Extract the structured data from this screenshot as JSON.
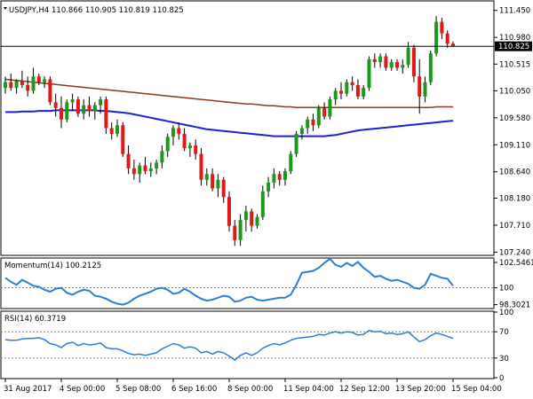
{
  "chart_data": [
    {
      "type": "candlestick",
      "header": "USDJPY,H4  110.866 110.905 110.819 110.825",
      "current_price": 110.825,
      "current_price_label": "110.825",
      "ylim": [
        107.2,
        111.6
      ],
      "yticks": [
        "111.450",
        "110.980",
        "110.515",
        "110.050",
        "109.580",
        "109.110",
        "108.640",
        "108.180",
        "107.710",
        "107.240"
      ],
      "ytick_values": [
        111.45,
        110.98,
        110.515,
        110.05,
        109.58,
        109.11,
        108.64,
        108.18,
        107.71,
        107.24
      ],
      "xticks": [
        "31 Aug 2017",
        "4 Sep 00:00",
        "5 Sep 08:00",
        "6 Sep 16:00",
        "8 Sep 00:00",
        "11 Sep 04:00",
        "12 Sep 12:00",
        "13 Sep 20:00",
        "15 Sep 04:00"
      ],
      "xtick_index": [
        0,
        10,
        20,
        30,
        40,
        50,
        60,
        70,
        80
      ],
      "candles": [
        {
          "o": 110.1,
          "h": 110.3,
          "l": 110.0,
          "c": 110.2
        },
        {
          "o": 110.2,
          "h": 110.35,
          "l": 110.05,
          "c": 110.1
        },
        {
          "o": 110.1,
          "h": 110.25,
          "l": 110.0,
          "c": 110.22
        },
        {
          "o": 110.22,
          "h": 110.4,
          "l": 110.1,
          "c": 110.15
        },
        {
          "o": 110.15,
          "h": 110.3,
          "l": 109.95,
          "c": 110.05
        },
        {
          "o": 110.05,
          "h": 110.45,
          "l": 110.0,
          "c": 110.3
        },
        {
          "o": 110.3,
          "h": 110.35,
          "l": 110.15,
          "c": 110.2
        },
        {
          "o": 110.2,
          "h": 110.3,
          "l": 110.1,
          "c": 110.25
        },
        {
          "o": 110.25,
          "h": 110.3,
          "l": 109.8,
          "c": 109.85
        },
        {
          "o": 109.85,
          "h": 110.0,
          "l": 109.6,
          "c": 109.75
        },
        {
          "o": 109.75,
          "h": 109.95,
          "l": 109.4,
          "c": 109.55
        },
        {
          "o": 109.55,
          "h": 109.9,
          "l": 109.5,
          "c": 109.85
        },
        {
          "o": 109.85,
          "h": 110.0,
          "l": 109.7,
          "c": 109.9
        },
        {
          "o": 109.9,
          "h": 109.95,
          "l": 109.6,
          "c": 109.65
        },
        {
          "o": 109.65,
          "h": 109.9,
          "l": 109.55,
          "c": 109.8
        },
        {
          "o": 109.8,
          "h": 109.95,
          "l": 109.6,
          "c": 109.7
        },
        {
          "o": 109.7,
          "h": 109.85,
          "l": 109.55,
          "c": 109.8
        },
        {
          "o": 109.8,
          "h": 109.95,
          "l": 109.65,
          "c": 109.9
        },
        {
          "o": 109.9,
          "h": 109.95,
          "l": 109.3,
          "c": 109.4
        },
        {
          "o": 109.4,
          "h": 109.5,
          "l": 109.2,
          "c": 109.3
        },
        {
          "o": 109.3,
          "h": 109.55,
          "l": 109.25,
          "c": 109.45
        },
        {
          "o": 109.45,
          "h": 109.5,
          "l": 108.9,
          "c": 108.95
        },
        {
          "o": 108.95,
          "h": 109.1,
          "l": 108.6,
          "c": 108.7
        },
        {
          "o": 108.7,
          "h": 108.85,
          "l": 108.5,
          "c": 108.6
        },
        {
          "o": 108.6,
          "h": 108.8,
          "l": 108.45,
          "c": 108.75
        },
        {
          "o": 108.75,
          "h": 108.9,
          "l": 108.6,
          "c": 108.65
        },
        {
          "o": 108.65,
          "h": 108.8,
          "l": 108.55,
          "c": 108.7
        },
        {
          "o": 108.7,
          "h": 108.85,
          "l": 108.6,
          "c": 108.8
        },
        {
          "o": 108.8,
          "h": 109.1,
          "l": 108.7,
          "c": 109.0
        },
        {
          "o": 109.0,
          "h": 109.3,
          "l": 108.9,
          "c": 109.25
        },
        {
          "o": 109.25,
          "h": 109.45,
          "l": 109.1,
          "c": 109.4
        },
        {
          "o": 109.4,
          "h": 109.5,
          "l": 109.2,
          "c": 109.3
        },
        {
          "o": 109.3,
          "h": 109.4,
          "l": 109.0,
          "c": 109.05
        },
        {
          "o": 109.05,
          "h": 109.15,
          "l": 108.9,
          "c": 109.1
        },
        {
          "o": 109.1,
          "h": 109.2,
          "l": 108.85,
          "c": 108.95
        },
        {
          "o": 108.95,
          "h": 109.05,
          "l": 108.4,
          "c": 108.5
        },
        {
          "o": 108.5,
          "h": 108.7,
          "l": 108.4,
          "c": 108.6
        },
        {
          "o": 108.6,
          "h": 108.7,
          "l": 108.3,
          "c": 108.35
        },
        {
          "o": 108.35,
          "h": 108.6,
          "l": 108.2,
          "c": 108.5
        },
        {
          "o": 108.5,
          "h": 108.55,
          "l": 108.1,
          "c": 108.2
        },
        {
          "o": 108.2,
          "h": 108.3,
          "l": 107.6,
          "c": 107.7
        },
        {
          "o": 107.7,
          "h": 107.8,
          "l": 107.35,
          "c": 107.45
        },
        {
          "o": 107.45,
          "h": 107.9,
          "l": 107.35,
          "c": 107.8
        },
        {
          "o": 107.8,
          "h": 108.05,
          "l": 107.6,
          "c": 107.95
        },
        {
          "o": 107.95,
          "h": 108.0,
          "l": 107.6,
          "c": 107.7
        },
        {
          "o": 107.7,
          "h": 107.9,
          "l": 107.65,
          "c": 107.85
        },
        {
          "o": 107.85,
          "h": 108.4,
          "l": 107.8,
          "c": 108.3
        },
        {
          "o": 108.3,
          "h": 108.55,
          "l": 108.2,
          "c": 108.45
        },
        {
          "o": 108.45,
          "h": 108.7,
          "l": 108.35,
          "c": 108.6
        },
        {
          "o": 108.6,
          "h": 108.65,
          "l": 108.4,
          "c": 108.5
        },
        {
          "o": 108.5,
          "h": 108.7,
          "l": 108.4,
          "c": 108.65
        },
        {
          "o": 108.65,
          "h": 109.0,
          "l": 108.6,
          "c": 108.95
        },
        {
          "o": 108.95,
          "h": 109.35,
          "l": 108.9,
          "c": 109.3
        },
        {
          "o": 109.3,
          "h": 109.45,
          "l": 109.2,
          "c": 109.4
        },
        {
          "o": 109.4,
          "h": 109.6,
          "l": 109.3,
          "c": 109.55
        },
        {
          "o": 109.55,
          "h": 109.65,
          "l": 109.35,
          "c": 109.45
        },
        {
          "o": 109.45,
          "h": 109.8,
          "l": 109.4,
          "c": 109.75
        },
        {
          "o": 109.75,
          "h": 109.85,
          "l": 109.55,
          "c": 109.6
        },
        {
          "o": 109.6,
          "h": 109.95,
          "l": 109.55,
          "c": 109.9
        },
        {
          "o": 109.9,
          "h": 110.1,
          "l": 109.8,
          "c": 110.05
        },
        {
          "o": 110.05,
          "h": 110.2,
          "l": 109.9,
          "c": 110.0
        },
        {
          "o": 110.0,
          "h": 110.25,
          "l": 109.95,
          "c": 110.2
        },
        {
          "o": 110.2,
          "h": 110.3,
          "l": 110.05,
          "c": 110.15
        },
        {
          "o": 110.15,
          "h": 110.25,
          "l": 109.9,
          "c": 109.95
        },
        {
          "o": 109.95,
          "h": 110.15,
          "l": 109.9,
          "c": 110.1
        },
        {
          "o": 110.1,
          "h": 110.65,
          "l": 110.05,
          "c": 110.6
        },
        {
          "o": 110.6,
          "h": 110.7,
          "l": 110.45,
          "c": 110.55
        },
        {
          "o": 110.55,
          "h": 110.7,
          "l": 110.45,
          "c": 110.65
        },
        {
          "o": 110.65,
          "h": 110.7,
          "l": 110.4,
          "c": 110.45
        },
        {
          "o": 110.45,
          "h": 110.6,
          "l": 110.4,
          "c": 110.55
        },
        {
          "o": 110.55,
          "h": 110.6,
          "l": 110.4,
          "c": 110.45
        },
        {
          "o": 110.45,
          "h": 110.6,
          "l": 110.35,
          "c": 110.5
        },
        {
          "o": 110.5,
          "h": 110.9,
          "l": 110.45,
          "c": 110.8
        },
        {
          "o": 110.8,
          "h": 110.85,
          "l": 110.2,
          "c": 110.3
        },
        {
          "o": 110.3,
          "h": 110.6,
          "l": 109.65,
          "c": 109.95
        },
        {
          "o": 109.95,
          "h": 110.3,
          "l": 109.85,
          "c": 110.2
        },
        {
          "o": 110.2,
          "h": 110.75,
          "l": 110.15,
          "c": 110.7
        },
        {
          "o": 110.7,
          "h": 111.35,
          "l": 110.65,
          "c": 111.25
        },
        {
          "o": 111.25,
          "h": 111.32,
          "l": 110.95,
          "c": 111.05
        },
        {
          "o": 111.05,
          "h": 111.1,
          "l": 110.8,
          "c": 110.87
        },
        {
          "o": 110.87,
          "h": 110.91,
          "l": 110.82,
          "c": 110.825
        }
      ],
      "ma_brown": [
        110.25,
        110.24,
        110.23,
        110.22,
        110.21,
        110.2,
        110.19,
        110.18,
        110.17,
        110.16,
        110.15,
        110.14,
        110.13,
        110.12,
        110.11,
        110.1,
        110.09,
        110.08,
        110.07,
        110.06,
        110.05,
        110.04,
        110.03,
        110.02,
        110.01,
        110.0,
        109.99,
        109.98,
        109.97,
        109.96,
        109.95,
        109.94,
        109.93,
        109.92,
        109.91,
        109.9,
        109.89,
        109.88,
        109.87,
        109.86,
        109.85,
        109.84,
        109.83,
        109.82,
        109.82,
        109.81,
        109.8,
        109.79,
        109.79,
        109.78,
        109.77,
        109.77,
        109.76,
        109.76,
        109.76,
        109.76,
        109.76,
        109.76,
        109.76,
        109.76,
        109.76,
        109.76,
        109.76,
        109.76,
        109.76,
        109.76,
        109.76,
        109.76,
        109.76,
        109.76,
        109.76,
        109.76,
        109.76,
        109.76,
        109.76,
        109.76,
        109.76,
        109.77,
        109.77,
        109.77,
        109.77
      ],
      "ma_blue": [
        109.68,
        109.68,
        109.68,
        109.69,
        109.69,
        109.69,
        109.7,
        109.7,
        109.7,
        109.71,
        109.71,
        109.71,
        109.71,
        109.71,
        109.71,
        109.71,
        109.71,
        109.7,
        109.7,
        109.69,
        109.68,
        109.67,
        109.66,
        109.64,
        109.62,
        109.6,
        109.58,
        109.56,
        109.54,
        109.52,
        109.5,
        109.48,
        109.46,
        109.44,
        109.42,
        109.4,
        109.38,
        109.37,
        109.36,
        109.35,
        109.34,
        109.33,
        109.32,
        109.31,
        109.3,
        109.29,
        109.28,
        109.27,
        109.26,
        109.26,
        109.26,
        109.26,
        109.26,
        109.26,
        109.26,
        109.26,
        109.26,
        109.26,
        109.27,
        109.28,
        109.3,
        109.32,
        109.34,
        109.36,
        109.37,
        109.38,
        109.39,
        109.4,
        109.41,
        109.42,
        109.43,
        109.44,
        109.45,
        109.46,
        109.47,
        109.48,
        109.49,
        109.5,
        109.51,
        109.52,
        109.53
      ]
    },
    {
      "type": "line",
      "title": "Momentum(14) 100.2125",
      "ylim": [
        98.0,
        102.9
      ],
      "yticks": [
        "102.5461",
        "100",
        "98.3021"
      ],
      "ytick_values": [
        102.5461,
        100.0,
        98.3021
      ],
      "level": 100,
      "values": [
        101.0,
        100.6,
        100.3,
        100.8,
        100.5,
        100.2,
        100.1,
        99.8,
        99.6,
        99.9,
        100.0,
        99.5,
        99.3,
        99.6,
        99.8,
        99.7,
        99.2,
        99.1,
        98.9,
        98.6,
        98.4,
        98.3,
        98.5,
        98.9,
        99.2,
        99.4,
        99.6,
        99.9,
        100.0,
        99.8,
        99.4,
        99.5,
        99.9,
        99.6,
        99.2,
        98.9,
        98.7,
        98.8,
        99.0,
        99.2,
        99.1,
        98.6,
        98.7,
        99.0,
        99.1,
        98.8,
        98.7,
        98.8,
        98.9,
        99.0,
        99.0,
        99.3,
        100.3,
        101.5,
        101.6,
        101.7,
        102.0,
        102.5,
        102.9,
        102.3,
        102.1,
        102.5,
        102.2,
        102.6,
        102.0,
        101.6,
        101.1,
        101.2,
        100.9,
        100.7,
        100.8,
        100.6,
        100.4,
        100.0,
        99.9,
        100.3,
        101.4,
        101.2,
        101.0,
        100.9,
        100.2
      ]
    },
    {
      "type": "line",
      "title": "RSI(14) 60.3719",
      "ylim": [
        0,
        100
      ],
      "yticks": [
        "100",
        "70",
        "30",
        "0"
      ],
      "ytick_values": [
        100,
        70,
        30,
        0
      ],
      "levels": [
        70,
        30
      ],
      "values": [
        58,
        57,
        57,
        59,
        60,
        60,
        61,
        58,
        52,
        50,
        46,
        52,
        54,
        49,
        52,
        50,
        51,
        53,
        46,
        44,
        44,
        41,
        37,
        35,
        36,
        34,
        36,
        38,
        44,
        48,
        52,
        50,
        45,
        47,
        45,
        38,
        40,
        36,
        40,
        38,
        33,
        27,
        34,
        38,
        34,
        38,
        45,
        49,
        52,
        50,
        53,
        57,
        60,
        61,
        62,
        63,
        66,
        65,
        68,
        70,
        68,
        70,
        69,
        65,
        66,
        72,
        70,
        71,
        67,
        68,
        66,
        67,
        70,
        62,
        55,
        58,
        64,
        68,
        66,
        63,
        60
      ]
    }
  ]
}
